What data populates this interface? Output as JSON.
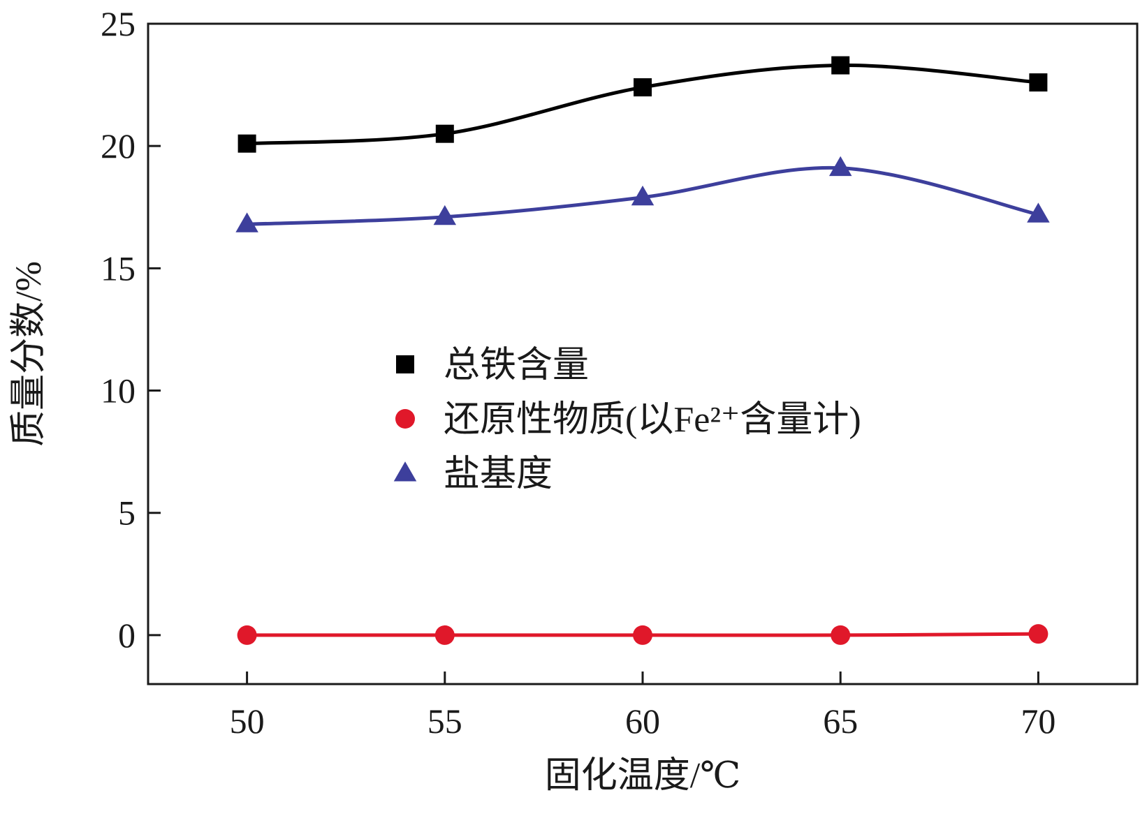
{
  "chart_data": {
    "type": "line",
    "x": [
      50,
      55,
      60,
      65,
      70
    ],
    "xlabel": "固化温度/℃",
    "ylabel": "质量分数/%",
    "xlim": [
      47.5,
      72.5
    ],
    "ylim": [
      -2,
      25
    ],
    "xticks": [
      50,
      55,
      60,
      65,
      70
    ],
    "yticks": [
      0,
      5,
      10,
      15,
      20,
      25
    ],
    "grid": false,
    "legend_position": "center",
    "series": [
      {
        "name": "总铁含量",
        "marker": "square",
        "color": "#000000",
        "values": [
          20.1,
          20.5,
          22.4,
          23.3,
          22.6
        ]
      },
      {
        "name": "还原性物质(以Fe²⁺含量计)",
        "marker": "circle",
        "color": "#e0182a",
        "values": [
          0.0,
          0.0,
          0.0,
          0.0,
          0.05
        ]
      },
      {
        "name": "盐基度",
        "marker": "triangle",
        "color": "#3d3f9c",
        "values": [
          16.8,
          17.1,
          17.9,
          19.1,
          17.2
        ]
      }
    ]
  }
}
